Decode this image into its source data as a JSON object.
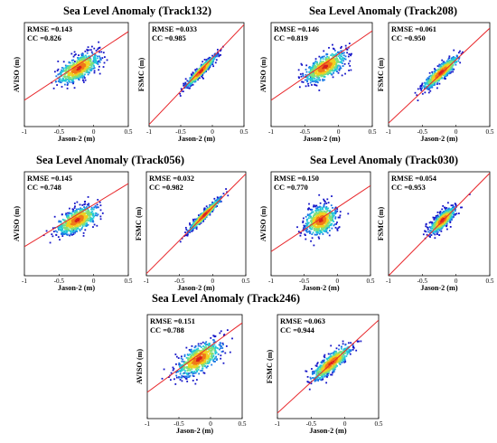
{
  "groups": [
    {
      "title": "Sea Level Anomaly (Track132)"
    },
    {
      "title": "Sea Level Anomaly (Track208)"
    },
    {
      "title": "Sea Level Anomaly (Track056)"
    },
    {
      "title": "Sea Level Anomaly (Track030)"
    },
    {
      "title": "Sea Level Anomaly (Track246)"
    }
  ],
  "chart_data": [
    {
      "type": "scatter",
      "group": 0,
      "xlabel": "Jason-2 (m)",
      "ylabel": "AVISO (m)",
      "rmse_label": "RMSE =0.143",
      "cc_label": "CC =0.826",
      "xlim": [
        -1,
        0.5
      ],
      "ylim": [
        -1,
        0.5
      ],
      "xticks": [
        "-1",
        "-0.5",
        "0",
        "0.5"
      ],
      "fit_line": {
        "x": [
          -1,
          0.5
        ],
        "y": [
          -0.62,
          0.37
        ]
      },
      "cloud": {
        "center": [
          -0.22,
          -0.16
        ],
        "spread_major": 0.3,
        "spread_minor": 0.07,
        "angle": 0.55
      }
    },
    {
      "type": "scatter",
      "group": 0,
      "xlabel": "Jason-2 (m)",
      "ylabel": "FSMC (m)",
      "rmse_label": "RMSE =0.033",
      "cc_label": "CC =0.985",
      "xlim": [
        -1,
        0.5
      ],
      "ylim": [
        -1,
        0.5
      ],
      "xticks": [
        "-1",
        "-0.5",
        "0",
        "0.5"
      ],
      "fit_line": {
        "x": [
          -1,
          0.5
        ],
        "y": [
          -0.97,
          0.47
        ]
      },
      "cloud": {
        "center": [
          -0.18,
          -0.2
        ],
        "spread_major": 0.28,
        "spread_minor": 0.025,
        "angle": 0.76
      }
    },
    {
      "type": "scatter",
      "group": 1,
      "xlabel": "Jason-2 (m)",
      "ylabel": "AVISO (m)",
      "rmse_label": "RMSE =0.146",
      "cc_label": "CC =0.819",
      "xlim": [
        -1,
        0.5
      ],
      "ylim": [
        -1,
        0.5
      ],
      "xticks": [
        "-1",
        "-0.5",
        "0",
        "0.5"
      ],
      "fit_line": {
        "x": [
          -1,
          0.5
        ],
        "y": [
          -0.62,
          0.38
        ]
      },
      "cloud": {
        "center": [
          -0.2,
          -0.14
        ],
        "spread_major": 0.3,
        "spread_minor": 0.07,
        "angle": 0.55
      }
    },
    {
      "type": "scatter",
      "group": 1,
      "xlabel": "Jason-2 (m)",
      "ylabel": "FSMC (m)",
      "rmse_label": "RMSE =0.061",
      "cc_label": "CC =0.950",
      "xlim": [
        -1,
        0.5
      ],
      "ylim": [
        -1,
        0.5
      ],
      "xticks": [
        "-1",
        "-0.5",
        "0",
        "0.5"
      ],
      "fit_line": {
        "x": [
          -1,
          0.5
        ],
        "y": [
          -0.95,
          0.42
        ]
      },
      "cloud": {
        "center": [
          -0.22,
          -0.22
        ],
        "spread_major": 0.3,
        "spread_minor": 0.04,
        "angle": 0.72
      }
    },
    {
      "type": "scatter",
      "group": 2,
      "xlabel": "Jason-2 (m)",
      "ylabel": "AVISO (m)",
      "rmse_label": "RMSE =0.145",
      "cc_label": "CC =0.748",
      "xlim": [
        -1,
        0.5
      ],
      "ylim": [
        -1,
        0.5
      ],
      "xticks": [
        "-1",
        "-0.5",
        "0",
        "0.5"
      ],
      "fit_line": {
        "x": [
          -1,
          0.5
        ],
        "y": [
          -0.58,
          0.33
        ]
      },
      "cloud": {
        "center": [
          -0.24,
          -0.2
        ],
        "spread_major": 0.28,
        "spread_minor": 0.07,
        "angle": 0.5
      }
    },
    {
      "type": "scatter",
      "group": 2,
      "xlabel": "Jason-2 (m)",
      "ylabel": "FSMC (m)",
      "rmse_label": "RMSE =0.032",
      "cc_label": "CC =0.982",
      "xlim": [
        -1,
        0.5
      ],
      "ylim": [
        -1,
        0.5
      ],
      "xticks": [
        "-1",
        "-0.5",
        "0",
        "0.5"
      ],
      "fit_line": {
        "x": [
          -1,
          0.5
        ],
        "y": [
          -0.97,
          0.47
        ]
      },
      "cloud": {
        "center": [
          -0.12,
          -0.12
        ],
        "spread_major": 0.3,
        "spread_minor": 0.02,
        "angle": 0.77
      }
    },
    {
      "type": "scatter",
      "group": 3,
      "xlabel": "Jason-2 (m)",
      "ylabel": "AVISO (m)",
      "rmse_label": "RMSE =0.150",
      "cc_label": "CC =0.770",
      "xlim": [
        -1,
        0.5
      ],
      "ylim": [
        -1,
        0.5
      ],
      "xticks": [
        "-1",
        "-0.5",
        "0",
        "0.5"
      ],
      "fit_line": {
        "x": [
          -1,
          0.5
        ],
        "y": [
          -0.65,
          0.3
        ]
      },
      "cloud": {
        "center": [
          -0.25,
          -0.2
        ],
        "spread_major": 0.22,
        "spread_minor": 0.09,
        "angle": 0.6
      }
    },
    {
      "type": "scatter",
      "group": 3,
      "xlabel": "Jason-2 (m)",
      "ylabel": "FSMC (m)",
      "rmse_label": "RMSE =0.054",
      "cc_label": "CC =0.953",
      "xlim": [
        -1,
        0.5
      ],
      "ylim": [
        -1,
        0.5
      ],
      "xticks": [
        "-1",
        "-0.5",
        "0",
        "0.5"
      ],
      "fit_line": {
        "x": [
          -1,
          0.5
        ],
        "y": [
          -1.0,
          0.48
        ]
      },
      "cloud": {
        "center": [
          -0.2,
          -0.2
        ],
        "spread_major": 0.22,
        "spread_minor": 0.04,
        "angle": 0.78
      }
    },
    {
      "type": "scatter",
      "group": 4,
      "xlabel": "Jason-2 (m)",
      "ylabel": "AVISO (m)",
      "rmse_label": "RMSE =0.151",
      "cc_label": "CC =0.788",
      "xlim": [
        -1,
        0.5
      ],
      "ylim": [
        -1,
        0.5
      ],
      "xticks": [
        "-1",
        "-0.5",
        "0",
        "0.5"
      ],
      "fit_line": {
        "x": [
          -1,
          0.5
        ],
        "y": [
          -0.62,
          0.38
        ]
      },
      "cloud": {
        "center": [
          -0.18,
          -0.14
        ],
        "spread_major": 0.34,
        "spread_minor": 0.08,
        "angle": 0.55
      }
    },
    {
      "type": "scatter",
      "group": 4,
      "xlabel": "Jason-2 (m)",
      "ylabel": "FSMC (m)",
      "rmse_label": "RMSE =0.063",
      "cc_label": "CC =0.944",
      "xlim": [
        -1,
        0.5
      ],
      "ylim": [
        -1,
        0.5
      ],
      "xticks": [
        "-1",
        "-0.5",
        "0",
        "0.5"
      ],
      "fit_line": {
        "x": [
          -1,
          0.5
        ],
        "y": [
          -0.92,
          0.42
        ]
      },
      "cloud": {
        "center": [
          -0.2,
          -0.2
        ],
        "spread_major": 0.32,
        "spread_minor": 0.05,
        "angle": 0.7
      }
    }
  ],
  "colors": {
    "fit_line": "#e8262a",
    "density_ramp": [
      "#1414c8",
      "#1a78e6",
      "#22c8d8",
      "#7ee07a",
      "#f0d020",
      "#f07a18",
      "#d61e1e"
    ]
  }
}
